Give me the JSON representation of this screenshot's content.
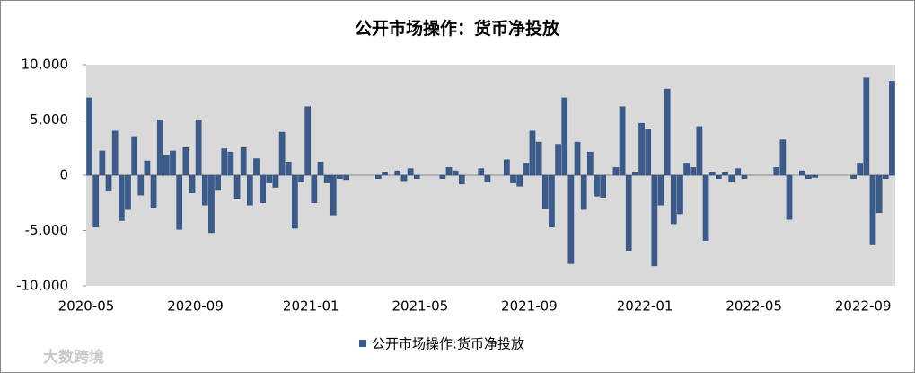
{
  "chart_data": {
    "type": "bar",
    "title": "公开市场操作：货币净投放",
    "legend": "公开市场操作:货币净投放",
    "watermark": "大数跨境",
    "color": "#3a5b8c",
    "ylim": [
      -10000,
      10000
    ],
    "yticks": [
      {
        "value": -10000,
        "label": "-10,000"
      },
      {
        "value": -5000,
        "label": "-5,000"
      },
      0,
      {
        "value": 5000,
        "label": "5,000"
      },
      {
        "value": 10000,
        "label": "10,000"
      }
    ],
    "categories": [
      "2020-05",
      null,
      null,
      null,
      null,
      null,
      null,
      null,
      null,
      null,
      null,
      null,
      null,
      null,
      null,
      null,
      null,
      "2020-09",
      null,
      null,
      null,
      null,
      null,
      null,
      null,
      null,
      null,
      null,
      null,
      null,
      null,
      null,
      null,
      null,
      null,
      "2021-01",
      null,
      null,
      null,
      null,
      null,
      null,
      null,
      null,
      null,
      null,
      null,
      null,
      null,
      null,
      null,
      null,
      "2021-05",
      null,
      null,
      null,
      null,
      null,
      null,
      null,
      null,
      null,
      null,
      null,
      null,
      null,
      null,
      null,
      null,
      "2021-09",
      null,
      null,
      null,
      null,
      null,
      null,
      null,
      null,
      null,
      null,
      null,
      null,
      null,
      null,
      null,
      null,
      null,
      "2022-01",
      null,
      null,
      null,
      null,
      null,
      null,
      null,
      null,
      null,
      null,
      null,
      null,
      null,
      null,
      null,
      null,
      "2022-05",
      null,
      null,
      null,
      null,
      null,
      null,
      null,
      null,
      null,
      null,
      null,
      null,
      null,
      null,
      null,
      null,
      "2022-09",
      null,
      null,
      null,
      null
    ],
    "values": [
      7000,
      -4700,
      2200,
      -1400,
      4000,
      -4100,
      -3100,
      3500,
      -1800,
      1300,
      -2900,
      5000,
      1800,
      2200,
      -4900,
      2500,
      -1600,
      5000,
      -2700,
      -5200,
      -1300,
      2400,
      2100,
      -2100,
      2500,
      -2700,
      1500,
      -2500,
      -700,
      -1100,
      3900,
      1200,
      -4800,
      -600,
      6200,
      -2500,
      1200,
      -700,
      -3600,
      -300,
      -400,
      0,
      0,
      0,
      0,
      -300,
      300,
      0,
      400,
      -500,
      600,
      -300,
      0,
      0,
      0,
      -300,
      700,
      400,
      -800,
      0,
      0,
      600,
      -600,
      0,
      0,
      1400,
      -700,
      -1000,
      1100,
      4000,
      3000,
      -3000,
      -4700,
      2800,
      7000,
      -8000,
      3000,
      -3100,
      2100,
      -1900,
      -2000,
      0,
      700,
      6200,
      -6800,
      300,
      4700,
      4200,
      -8200,
      -2700,
      7800,
      -4400,
      -3500,
      1100,
      700,
      4400,
      -5900,
      300,
      -300,
      300,
      -600,
      600,
      -300,
      0,
      0,
      0,
      0,
      700,
      3200,
      -4000,
      0,
      400,
      -300,
      -200,
      0,
      0,
      0,
      0,
      0,
      -300,
      1100,
      8800,
      -6300,
      -3400,
      -300,
      8500
    ]
  }
}
